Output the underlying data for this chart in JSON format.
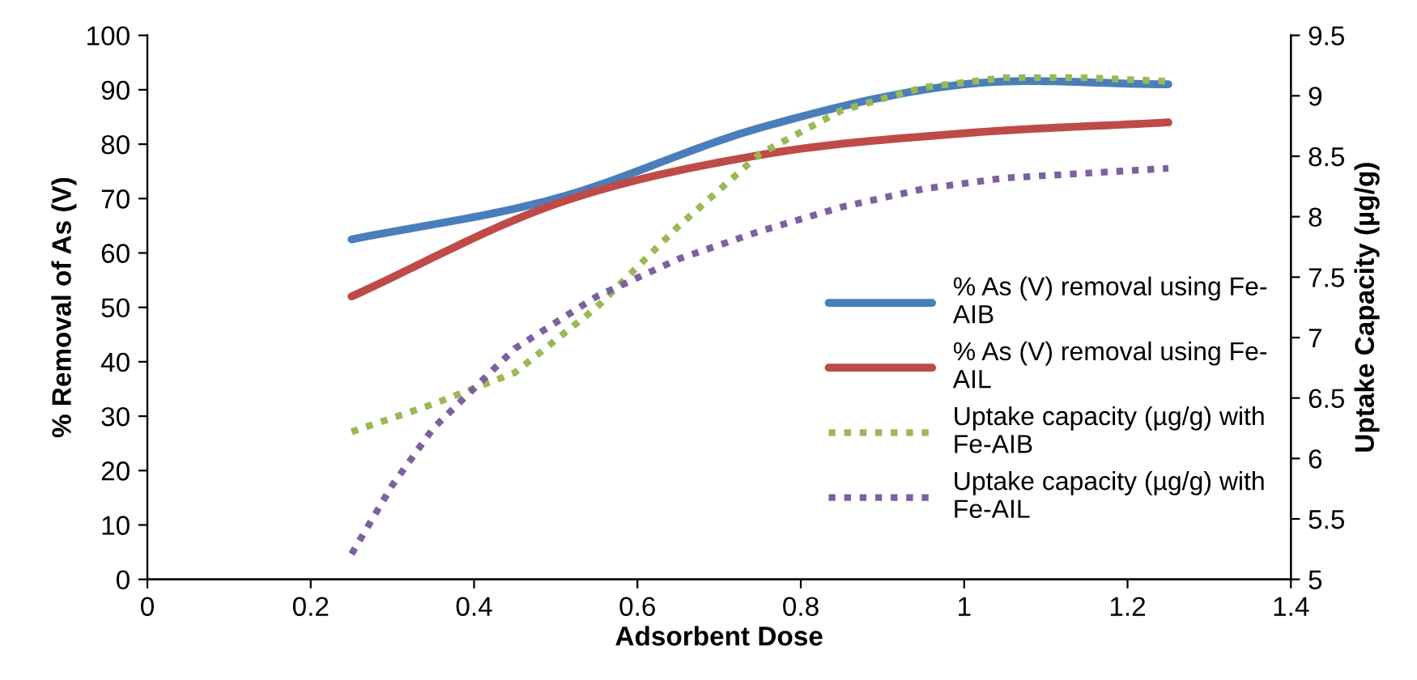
{
  "chart_data": {
    "type": "line",
    "xlabel": "Adsorbent Dose",
    "ylabel": "% Removal of As (V)",
    "y2label": "Uptake Capacity (µg/g)",
    "x": [
      0.25,
      0.5,
      0.75,
      1.0,
      1.25
    ],
    "series": [
      {
        "name": "% As (V) removal using Fe-\nAIB",
        "color": "#4a7ebb",
        "values": [
          62.5,
          70,
          83,
          91,
          91
        ],
        "line_style": "solid"
      },
      {
        "name": "% As (V) removal using Fe-\nAIL",
        "color": "#be4b48",
        "values": [
          52,
          69,
          78,
          82,
          84
        ],
        "line_style": "solid"
      },
      {
        "name": "Uptake capacity (µg/g) with\nFe-AIB",
        "color": "#98b954",
        "x": [
          0.25,
          0.35,
          0.45,
          0.55,
          0.65,
          0.75,
          0.85,
          0.95,
          1.05,
          1.15,
          1.25
        ],
        "values": [
          6.22,
          6.45,
          6.71,
          7.25,
          7.92,
          8.52,
          8.88,
          9.07,
          9.15,
          9.15,
          9.12
        ],
        "line_style": "dotted",
        "axis": "y2"
      },
      {
        "name": "Uptake capacity (µg/g) with\nFe-AIL",
        "color": "#7d60a0",
        "x": [
          0.25,
          0.3,
          0.35,
          0.45,
          0.55,
          0.65,
          0.75,
          0.85,
          0.95,
          1.05,
          1.15,
          1.25
        ],
        "values": [
          5.21,
          5.78,
          6.25,
          6.91,
          7.34,
          7.65,
          7.88,
          8.08,
          8.23,
          8.32,
          8.36,
          8.4
        ],
        "line_style": "dotted",
        "axis": "y2"
      }
    ],
    "xlim": [
      0,
      1.4
    ],
    "xticks": [
      0,
      0.2,
      0.4,
      0.6,
      0.8,
      1,
      1.2,
      1.4
    ],
    "ylim": [
      0,
      100
    ],
    "yticks": [
      0,
      10,
      20,
      30,
      40,
      50,
      60,
      70,
      80,
      90,
      100
    ],
    "y2lim": [
      5,
      9.5
    ],
    "y2ticks": [
      5,
      5.5,
      6,
      6.5,
      7,
      7.5,
      8,
      8.5,
      9,
      9.5
    ],
    "legend": "right",
    "grid": false,
    "marker": "none"
  }
}
